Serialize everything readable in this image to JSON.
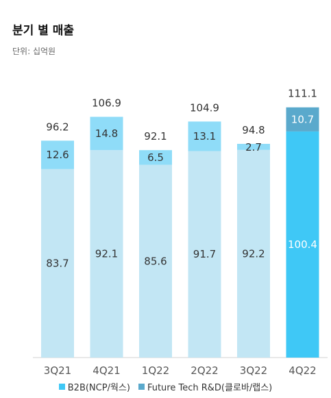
{
  "title": "분기 별 매출",
  "subtitle": "단위: 십억원",
  "colors": {
    "b2b": "#c2e6f4",
    "future": "#8fdcf8",
    "b2b_highlight": "#3fc8f6",
    "future_highlight": "#5aa9cc",
    "legend_b2b": "#3fc8f6",
    "legend_future": "#5aa9cc"
  },
  "chart_data": {
    "type": "bar",
    "stacked": true,
    "categories": [
      "3Q21",
      "4Q21",
      "1Q22",
      "2Q22",
      "3Q22",
      "4Q22"
    ],
    "series": [
      {
        "name": "B2B(NCP/웍스)",
        "values": [
          83.7,
          92.1,
          85.6,
          91.7,
          92.2,
          100.4
        ]
      },
      {
        "name": "Future Tech R&D(클로바/랩스)",
        "values": [
          12.6,
          14.8,
          6.5,
          13.1,
          2.7,
          10.7
        ]
      }
    ],
    "totals": [
      96.2,
      106.9,
      92.1,
      104.9,
      94.8,
      111.1
    ],
    "highlight_category": "4Q22",
    "ylim": [
      0,
      125
    ],
    "grid": false,
    "legend_position": "bottom"
  }
}
